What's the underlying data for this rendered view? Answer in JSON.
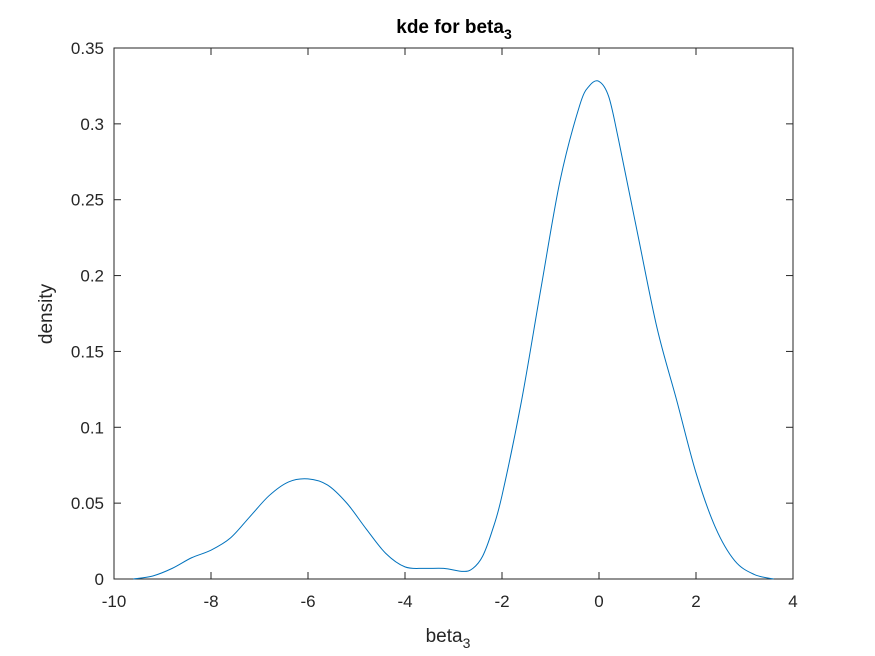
{
  "chart_data": {
    "type": "line",
    "title": "kde for beta",
    "title_subscript": "3",
    "xlabel": "beta",
    "xlabel_subscript": "3",
    "ylabel": "density",
    "xlim": [
      -10,
      4
    ],
    "ylim": [
      0,
      0.35
    ],
    "xticks": [
      -10,
      -8,
      -6,
      -4,
      -2,
      0,
      2,
      4
    ],
    "xtick_labels": [
      "-10",
      "-8",
      "-6",
      "-4",
      "-2",
      "0",
      "2",
      "4"
    ],
    "yticks": [
      0,
      0.05,
      0.1,
      0.15,
      0.2,
      0.25,
      0.3,
      0.35
    ],
    "ytick_labels": [
      "0",
      "0.05",
      "0.1",
      "0.15",
      "0.2",
      "0.25",
      "0.3",
      "0.35"
    ],
    "grid": false,
    "box": true,
    "series": [
      {
        "color": "#0072BD",
        "x": [
          -9.6,
          -9.2,
          -8.8,
          -8.4,
          -8.0,
          -7.6,
          -7.2,
          -6.8,
          -6.4,
          -6.0,
          -5.6,
          -5.2,
          -4.8,
          -4.4,
          -4.0,
          -3.6,
          -3.2,
          -2.8,
          -2.6,
          -2.4,
          -2.2,
          -2.0,
          -1.6,
          -1.2,
          -0.8,
          -0.4,
          -0.2,
          0.0,
          0.2,
          0.4,
          0.8,
          1.2,
          1.6,
          2.0,
          2.4,
          2.8,
          3.2,
          3.6
        ],
        "y": [
          0.0,
          0.002,
          0.007,
          0.014,
          0.019,
          0.027,
          0.041,
          0.055,
          0.064,
          0.066,
          0.062,
          0.05,
          0.033,
          0.017,
          0.008,
          0.007,
          0.007,
          0.005,
          0.007,
          0.015,
          0.032,
          0.055,
          0.117,
          0.191,
          0.263,
          0.312,
          0.325,
          0.328,
          0.318,
          0.29,
          0.227,
          0.165,
          0.118,
          0.07,
          0.034,
          0.012,
          0.003,
          0.0
        ]
      }
    ]
  }
}
